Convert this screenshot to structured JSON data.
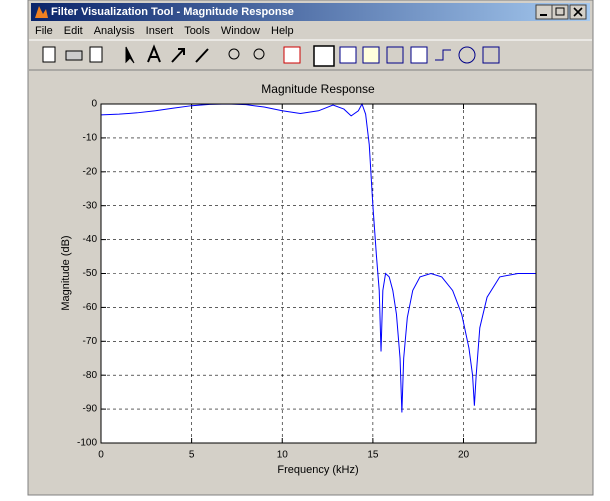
{
  "window": {
    "title": "Filter Visualization Tool - Magnitude Response"
  },
  "menu": [
    "File",
    "Edit",
    "Analysis",
    "Insert",
    "Tools",
    "Window",
    "Help"
  ],
  "chart_data": {
    "type": "line",
    "title": "Magnitude Response",
    "x_label": "Frequency (kHz)",
    "y_label": "Magnitude (dB)",
    "x": [
      0,
      1,
      2,
      3,
      4,
      5,
      6,
      7,
      8,
      9,
      10,
      11,
      12,
      12.8,
      13.4,
      13.8,
      14.2,
      14.4,
      14.6,
      14.8,
      15,
      15.2,
      15.35,
      15.45,
      15.55,
      15.7,
      15.9,
      16.1,
      16.3,
      16.5,
      16.6,
      16.7,
      16.9,
      17.2,
      17.6,
      18.2,
      18.8,
      19.4,
      19.9,
      20.3,
      20.5,
      20.6,
      20.7,
      20.9,
      21.3,
      22,
      23,
      24
    ],
    "values": [
      -3.2,
      -3,
      -2.6,
      -2,
      -1.2,
      -0.5,
      -0.1,
      0,
      -0.2,
      -0.9,
      -2,
      -2.8,
      -2,
      -0.3,
      -1.5,
      -3.5,
      -2,
      0,
      -3,
      -12,
      -30,
      -45,
      -55,
      -73,
      -55,
      -50,
      -51,
      -55,
      -62,
      -75,
      -91,
      -75,
      -63,
      -55,
      -51,
      -50,
      -51,
      -55,
      -62,
      -72,
      -80,
      -89,
      -80,
      -66,
      -57,
      -51,
      -50,
      -50
    ],
    "color": "#0000ff",
    "xlim": [
      0,
      24
    ],
    "xticks": [
      0,
      5,
      10,
      15,
      20
    ],
    "ylim": [
      -100,
      0
    ],
    "yticks": [
      0,
      -10,
      -20,
      -30,
      -40,
      -50,
      -60,
      -70,
      -80,
      -90,
      -100
    ],
    "grid": true
  }
}
